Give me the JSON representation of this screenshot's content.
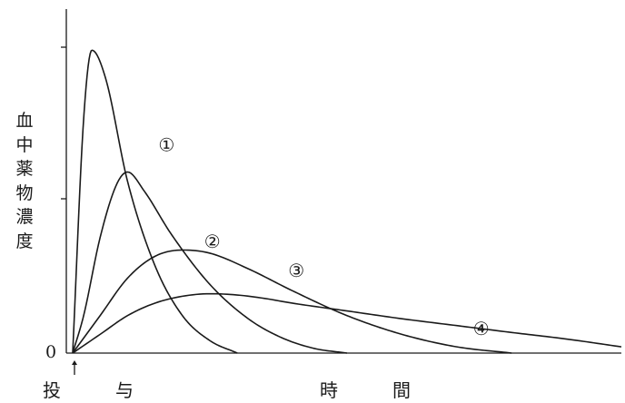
{
  "chart_data": {
    "type": "line",
    "ylabel": "血中薬物濃度",
    "xlabel": "時　間",
    "y_zero_label": "0",
    "x_start_label": "投　与",
    "ylim": [
      0,
      1
    ],
    "xlim": [
      0,
      1
    ],
    "grid": false,
    "legend": "none",
    "line_color": "#1a1a1a",
    "series": [
      {
        "name": "①",
        "x": [
          0,
          0.02,
          0.035,
          0.06,
          0.1,
          0.15,
          0.2,
          0.25,
          0.3
        ],
        "y": [
          0,
          0.75,
          0.97,
          0.88,
          0.55,
          0.28,
          0.12,
          0.04,
          0
        ]
      },
      {
        "name": "②",
        "x": [
          0,
          0.02,
          0.05,
          0.08,
          0.1,
          0.13,
          0.18,
          0.25,
          0.32,
          0.38,
          0.44,
          0.5
        ],
        "y": [
          0,
          0.12,
          0.37,
          0.54,
          0.58,
          0.52,
          0.38,
          0.22,
          0.11,
          0.05,
          0.015,
          0
        ]
      },
      {
        "name": "③",
        "x": [
          0,
          0.05,
          0.1,
          0.15,
          0.2,
          0.25,
          0.32,
          0.4,
          0.5,
          0.6,
          0.7,
          0.8
        ],
        "y": [
          0,
          0.12,
          0.24,
          0.31,
          0.33,
          0.32,
          0.27,
          0.2,
          0.12,
          0.06,
          0.02,
          0
        ]
      },
      {
        "name": "④",
        "x": [
          0,
          0.05,
          0.1,
          0.15,
          0.2,
          0.25,
          0.3,
          0.35,
          0.4,
          0.5,
          0.6,
          0.7,
          0.8,
          0.9,
          1.0
        ],
        "y": [
          0,
          0.06,
          0.12,
          0.16,
          0.182,
          0.19,
          0.186,
          0.175,
          0.16,
          0.135,
          0.11,
          0.088,
          0.066,
          0.045,
          0.02
        ]
      }
    ]
  }
}
